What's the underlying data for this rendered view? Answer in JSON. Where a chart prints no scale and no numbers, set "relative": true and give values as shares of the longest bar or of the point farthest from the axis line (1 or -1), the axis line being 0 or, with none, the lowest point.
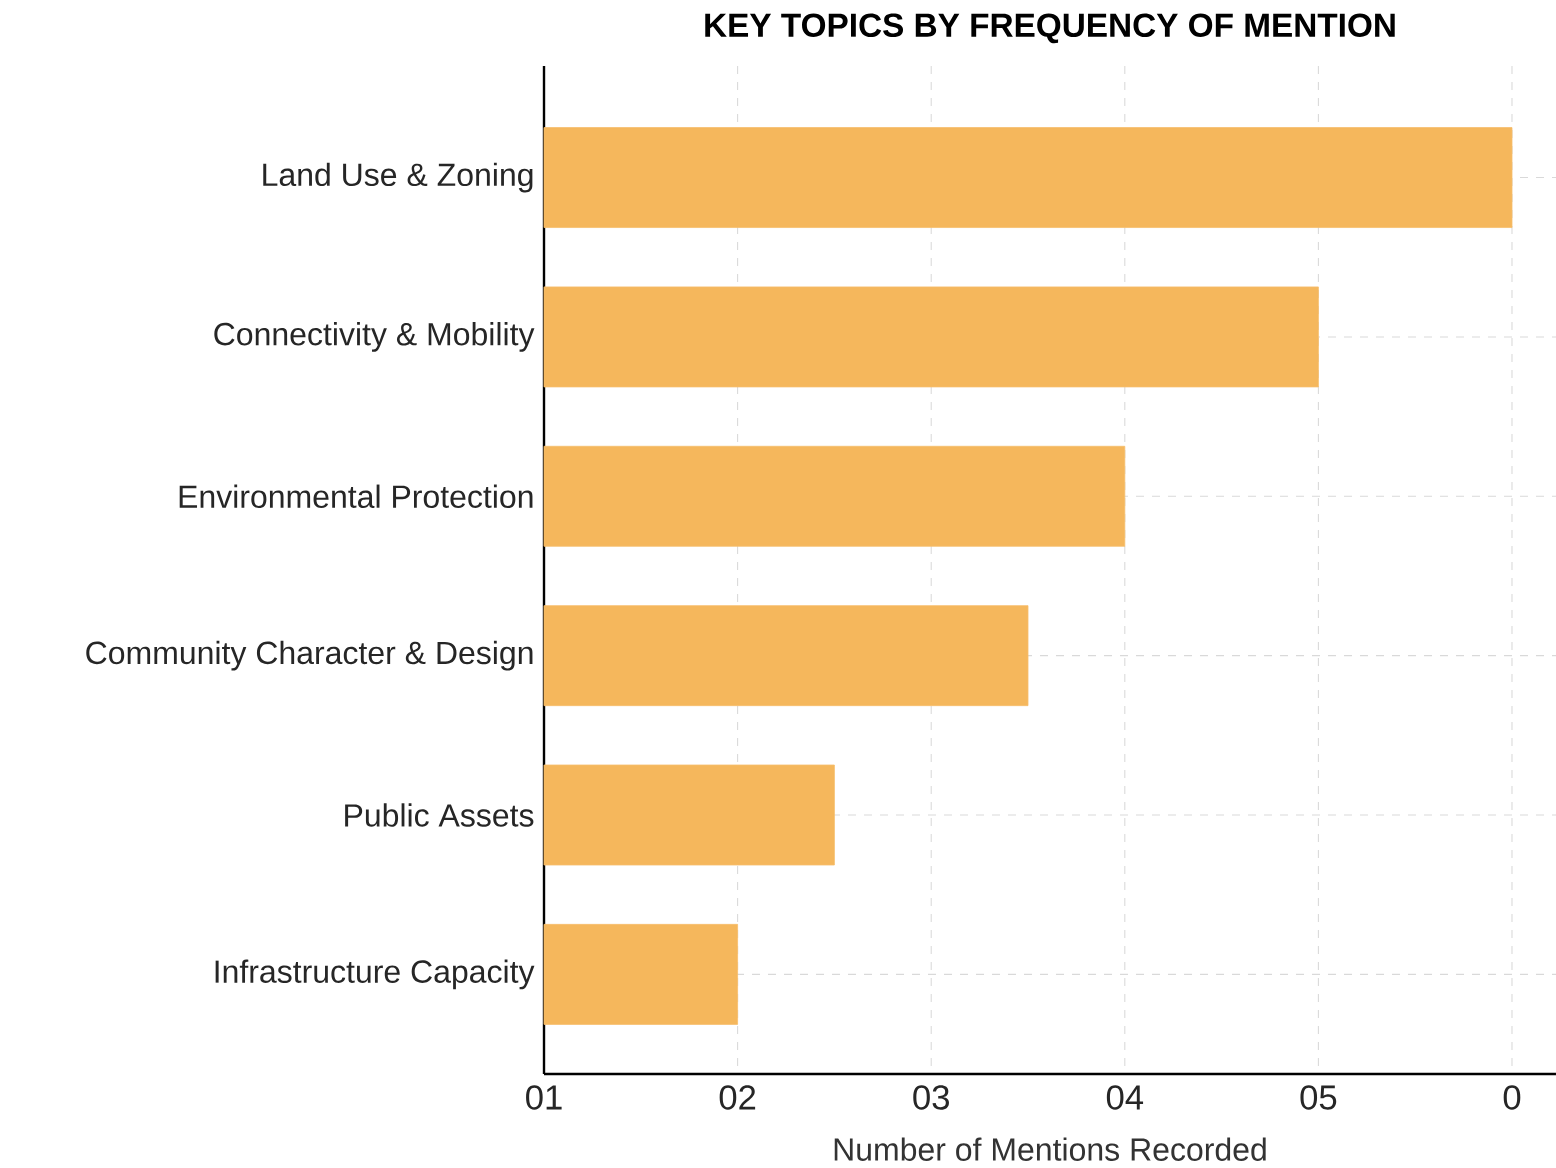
{
  "chart_data": {
    "type": "bar",
    "orientation": "horizontal",
    "relative": true,
    "title": "KEY TOPICS BY FREQUENCY OF MENTION",
    "xlabel": "Number of Mentions Recorded",
    "categories": [
      "Land Use & Zoning",
      "Connectivity & Mobility",
      "Environmental Protection",
      "Community Character & Design",
      "Public Assets",
      "Infrastructure Capacity"
    ],
    "values": [
      1,
      0.8,
      0.6,
      0.5,
      0.3,
      0.2
    ],
    "color": "#f5b75c",
    "annotations": [
      "01",
      "02",
      "03",
      "04",
      "05",
      "0"
    ],
    "grid": true
  }
}
